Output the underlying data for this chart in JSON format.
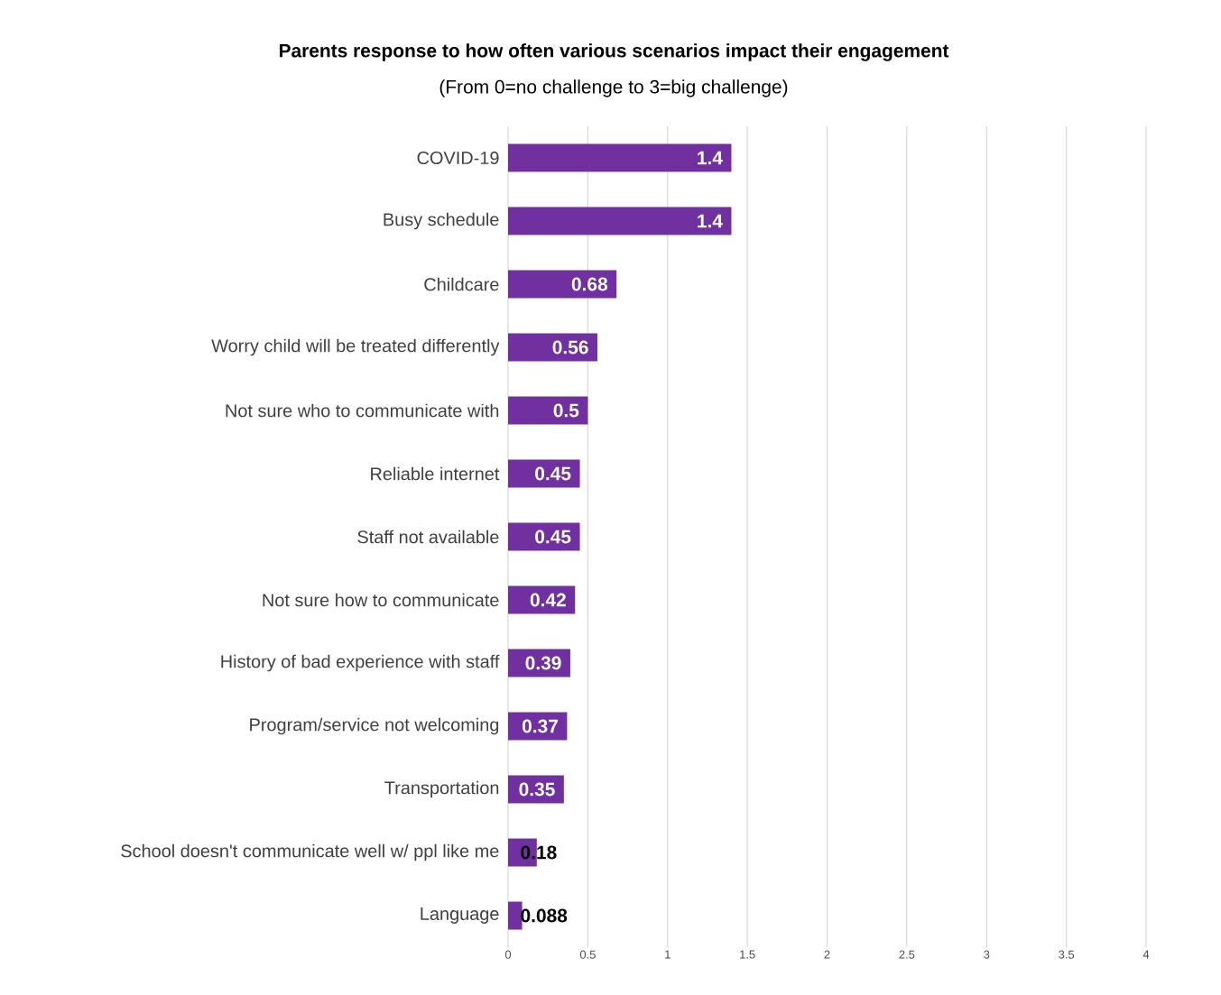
{
  "chart_data": {
    "type": "bar",
    "orientation": "horizontal",
    "title": "Parents response to how often various scenarios impact their engagement",
    "subtitle": "(From 0=no challenge to 3=big challenge)",
    "categories": [
      "COVID-19",
      "Busy schedule",
      "Childcare",
      "Worry child will be treated differently",
      "Not sure who to communicate with",
      "Reliable internet",
      "Staff not available",
      "Not sure how to communicate",
      "History of bad experience with staff",
      "Program/service not welcoming",
      "Transportation",
      "School doesn't communicate well w/ ppl like me",
      "Language"
    ],
    "values": [
      1.4,
      1.4,
      0.68,
      0.56,
      0.5,
      0.45,
      0.45,
      0.42,
      0.39,
      0.37,
      0.35,
      0.18,
      0.088
    ],
    "color": "#7030a0",
    "xlim": [
      0,
      4
    ],
    "xticks": [
      0,
      0.5,
      1,
      1.5,
      2,
      2.5,
      3,
      3.5,
      4
    ],
    "grid": "x",
    "data_labels": true
  }
}
